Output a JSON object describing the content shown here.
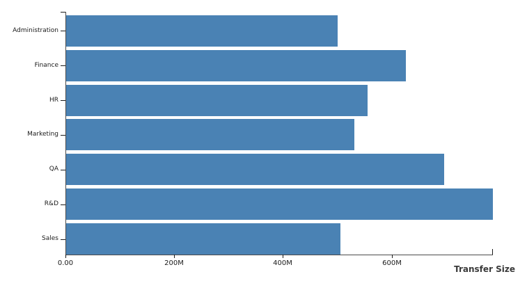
{
  "chart_data": {
    "type": "bar",
    "orientation": "horizontal",
    "title": "",
    "xlabel": "Transfer Size",
    "ylabel": "",
    "categories": [
      "Administration",
      "Finance",
      "HR",
      "Marketing",
      "QA",
      "R&D",
      "Sales"
    ],
    "values": [
      500,
      625,
      555,
      530,
      695,
      785,
      505
    ],
    "value_unit": "M (megabytes, estimated from axis)",
    "xlim": [
      0,
      785
    ],
    "x_ticks": [
      {
        "value": 0,
        "label": "0.00"
      },
      {
        "value": 200,
        "label": "200M"
      },
      {
        "value": 400,
        "label": "400M"
      },
      {
        "value": 600,
        "label": "600M"
      }
    ],
    "grid": false,
    "legend": "none",
    "bar_color": "#4A82B4",
    "axis_color": "#4a4a4a",
    "tick_color": "#1a1a1a",
    "label_color": "#1a1a1a",
    "axis_title_color": "#3a3a3a"
  }
}
